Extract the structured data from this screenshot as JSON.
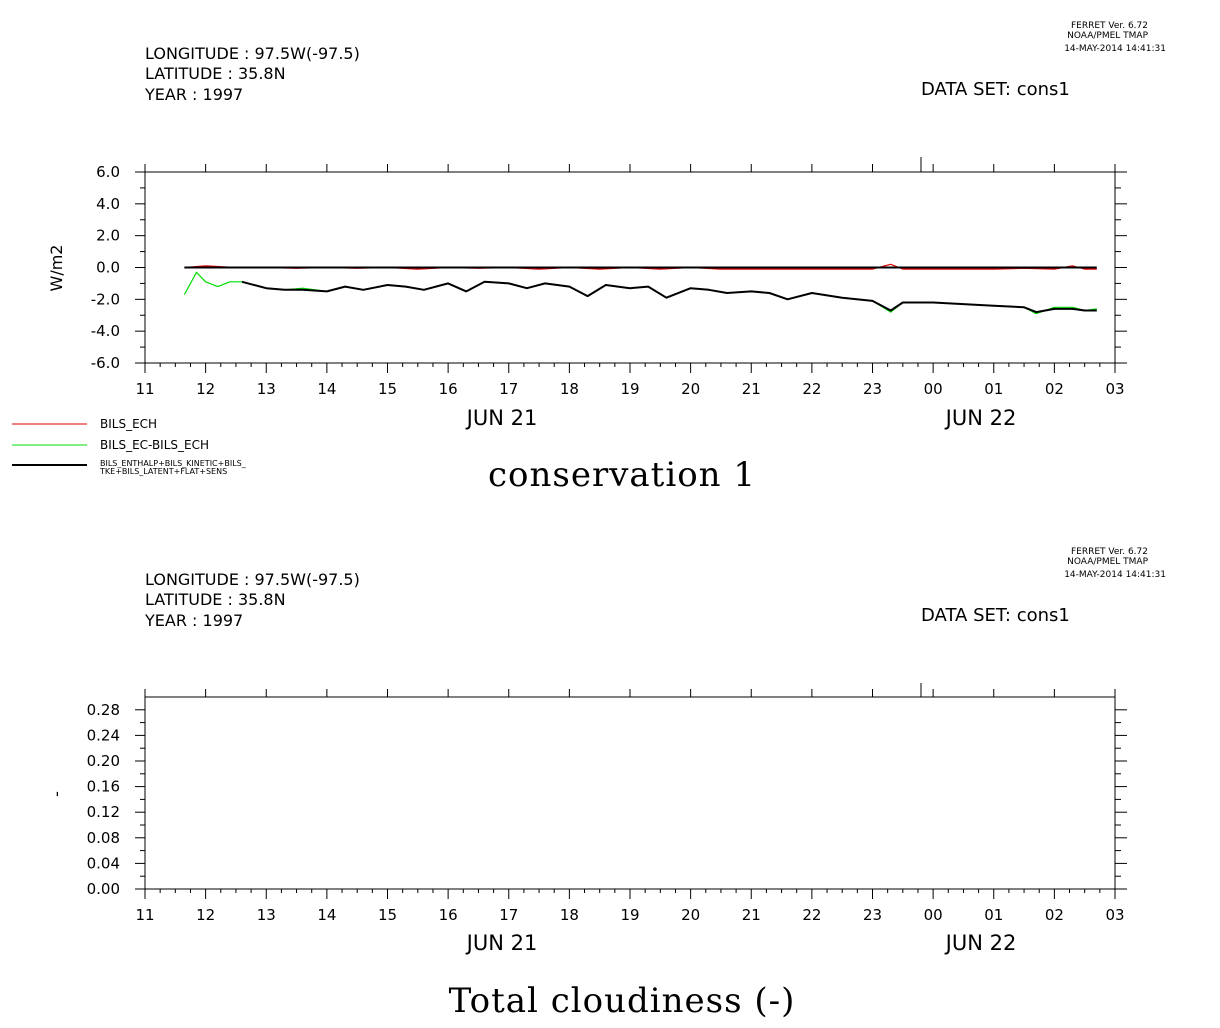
{
  "plots": [
    {
      "header": {
        "longitude": "LONGITUDE : 97.5W(-97.5)",
        "latitude": "LATITUDE : 35.8N",
        "year": "YEAR : 1997",
        "dataset": "DATA SET: cons1",
        "stamp_line1": "FERRET Ver. 6.72",
        "stamp_line2": "NOAA/PMEL TMAP",
        "stamp_line3": "14-MAY-2014 14:41:31"
      },
      "title": "conservation 1",
      "ylabel": "W/m2",
      "x_ticks": [
        "11",
        "12",
        "13",
        "14",
        "15",
        "16",
        "17",
        "18",
        "19",
        "20",
        "21",
        "22",
        "23",
        "00",
        "01",
        "02",
        "03"
      ],
      "date_labels": [
        "JUN 21",
        "JUN 22"
      ],
      "y_ticks": [
        "6.0",
        "4.0",
        "2.0",
        "0.0",
        "-2.0",
        "-4.0",
        "-6.0"
      ]
    },
    {
      "header": {
        "longitude": "LONGITUDE : 97.5W(-97.5)",
        "latitude": "LATITUDE : 35.8N",
        "year": "YEAR : 1997",
        "dataset": "DATA SET: cons1",
        "stamp_line1": "FERRET Ver. 6.72",
        "stamp_line2": "NOAA/PMEL TMAP",
        "stamp_line3": "14-MAY-2014 14:41:31"
      },
      "title": "Total cloudiness (-)",
      "ylabel": "-",
      "x_ticks": [
        "11",
        "12",
        "13",
        "14",
        "15",
        "16",
        "17",
        "18",
        "19",
        "20",
        "21",
        "22",
        "23",
        "00",
        "01",
        "02",
        "03"
      ],
      "date_labels": [
        "JUN 21",
        "JUN 22"
      ],
      "y_ticks": [
        "0.28",
        "0.24",
        "0.20",
        "0.16",
        "0.12",
        "0.08",
        "0.04",
        "0.00"
      ]
    }
  ],
  "legend": {
    "entries": [
      {
        "label": "BILS_ECH",
        "color": "#e00000"
      },
      {
        "label": "BILS_EC-BILS_ECH",
        "color": "#00dd00"
      },
      {
        "label_line1": "BILS_ENTHALP+BILS_KINETIC+BILS_",
        "label_line2": "TKE+BILS_LATENT+FLAT+SENS",
        "color": "#000000"
      }
    ]
  },
  "chart_data": [
    {
      "type": "line",
      "title": "conservation 1",
      "xlabel": "",
      "ylabel": "W/m2",
      "x_unit": "hours since JUN 21 11:00",
      "xlim": [
        0,
        16
      ],
      "ylim": [
        -6.0,
        6.0
      ],
      "grid": false,
      "series": [
        {
          "name": "BILS_ECH",
          "color": "#e00000",
          "x": [
            0.65,
            1.0,
            1.5,
            2.0,
            2.5,
            3.0,
            3.5,
            4.0,
            4.5,
            5.0,
            5.5,
            6.0,
            6.5,
            7.0,
            7.5,
            8.0,
            8.5,
            9.0,
            9.5,
            10.0,
            10.5,
            11.0,
            11.5,
            12.0,
            12.3,
            12.5,
            13.0,
            13.5,
            13.8,
            14.0,
            14.5,
            15.0,
            15.3,
            15.5,
            15.7
          ],
          "values": [
            0.0,
            0.1,
            0.0,
            0.0,
            -0.05,
            0.0,
            -0.05,
            0.0,
            -0.1,
            0.0,
            -0.05,
            0.0,
            -0.1,
            0.0,
            -0.1,
            0.0,
            -0.1,
            0.0,
            -0.1,
            -0.1,
            -0.1,
            -0.1,
            -0.1,
            -0.1,
            0.2,
            -0.1,
            -0.1,
            -0.1,
            -0.1,
            -0.1,
            -0.05,
            -0.1,
            0.1,
            -0.1,
            -0.1
          ]
        },
        {
          "name": "BILS_EC-BILS_ECH",
          "color": "#00dd00",
          "x": [
            0.65,
            0.85,
            1.0,
            1.2,
            1.4,
            1.6,
            2.0,
            2.3,
            2.6,
            3.0,
            3.3,
            3.6,
            4.0,
            4.3,
            4.6,
            5.0,
            5.3,
            5.6,
            6.0,
            6.3,
            6.6,
            7.0,
            7.3,
            7.6,
            8.0,
            8.3,
            8.6,
            9.0,
            9.3,
            9.6,
            10.0,
            10.3,
            10.6,
            11.0,
            11.5,
            12.0,
            12.3,
            12.5,
            13.0,
            13.5,
            14.0,
            14.5,
            14.7,
            15.0,
            15.3,
            15.5,
            15.7
          ],
          "values": [
            -1.7,
            -0.3,
            -0.9,
            -1.2,
            -0.9,
            -0.9,
            -1.3,
            -1.4,
            -1.3,
            -1.5,
            -1.2,
            -1.4,
            -1.1,
            -1.2,
            -1.4,
            -1.0,
            -1.5,
            -0.9,
            -1.0,
            -1.3,
            -1.0,
            -1.2,
            -1.8,
            -1.1,
            -1.3,
            -1.2,
            -1.9,
            -1.3,
            -1.4,
            -1.6,
            -1.5,
            -1.6,
            -2.0,
            -1.6,
            -1.9,
            -2.1,
            -2.8,
            -2.2,
            -2.2,
            -2.3,
            -2.4,
            -2.5,
            -2.9,
            -2.5,
            -2.5,
            -2.7,
            -2.6
          ]
        },
        {
          "name": "BILS_ENTHALP+BILS_KINETIC+BILS_TKE+BILS_LATENT+FLAT+SENS",
          "color": "#000000",
          "x": [
            0.65,
            15.7
          ],
          "values": [
            0.0,
            0.0
          ]
        },
        {
          "name": "BILS_ENTHALP+BILS_KINETIC+BILS_TKE+BILS_LATENT+FLAT+SENS (lower)",
          "color": "#000000",
          "x": [
            1.6,
            2.0,
            2.3,
            2.6,
            3.0,
            3.3,
            3.6,
            4.0,
            4.3,
            4.6,
            5.0,
            5.3,
            5.6,
            6.0,
            6.3,
            6.6,
            7.0,
            7.3,
            7.6,
            8.0,
            8.3,
            8.6,
            9.0,
            9.3,
            9.6,
            10.0,
            10.3,
            10.6,
            11.0,
            11.5,
            12.0,
            12.3,
            12.5,
            13.0,
            13.5,
            14.0,
            14.5,
            14.7,
            15.0,
            15.3,
            15.5,
            15.7
          ],
          "values": [
            -0.9,
            -1.3,
            -1.4,
            -1.4,
            -1.5,
            -1.2,
            -1.4,
            -1.1,
            -1.2,
            -1.4,
            -1.0,
            -1.5,
            -0.9,
            -1.0,
            -1.3,
            -1.0,
            -1.2,
            -1.8,
            -1.1,
            -1.3,
            -1.2,
            -1.9,
            -1.3,
            -1.4,
            -1.6,
            -1.5,
            -1.6,
            -2.0,
            -1.6,
            -1.9,
            -2.1,
            -2.7,
            -2.2,
            -2.2,
            -2.3,
            -2.4,
            -2.5,
            -2.8,
            -2.6,
            -2.6,
            -2.7,
            -2.7
          ]
        }
      ]
    },
    {
      "type": "line",
      "title": "Total cloudiness (-)",
      "xlabel": "",
      "ylabel": "-",
      "x_unit": "hours since JUN 21 11:00",
      "xlim": [
        0,
        16
      ],
      "ylim": [
        0.0,
        0.3
      ],
      "grid": false,
      "series": []
    }
  ]
}
